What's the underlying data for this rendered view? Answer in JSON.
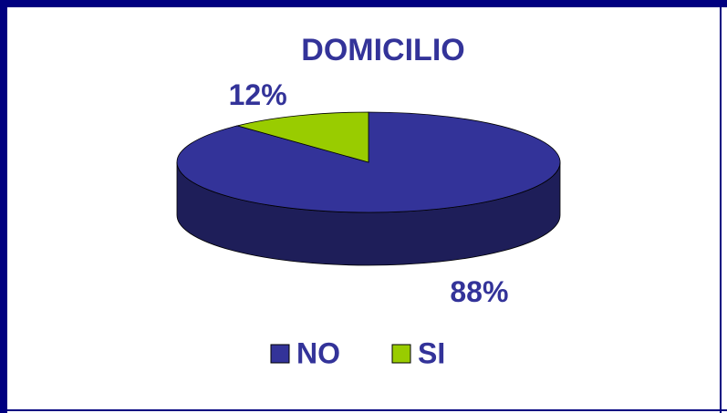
{
  "chart_data": {
    "type": "pie",
    "title": "DOMICILIO",
    "categories": [
      "NO",
      "SI"
    ],
    "values": [
      88,
      12
    ],
    "value_labels": [
      "88%",
      "12%"
    ],
    "colors": [
      "#333399",
      "#99cc00"
    ],
    "legend": "bottom"
  }
}
